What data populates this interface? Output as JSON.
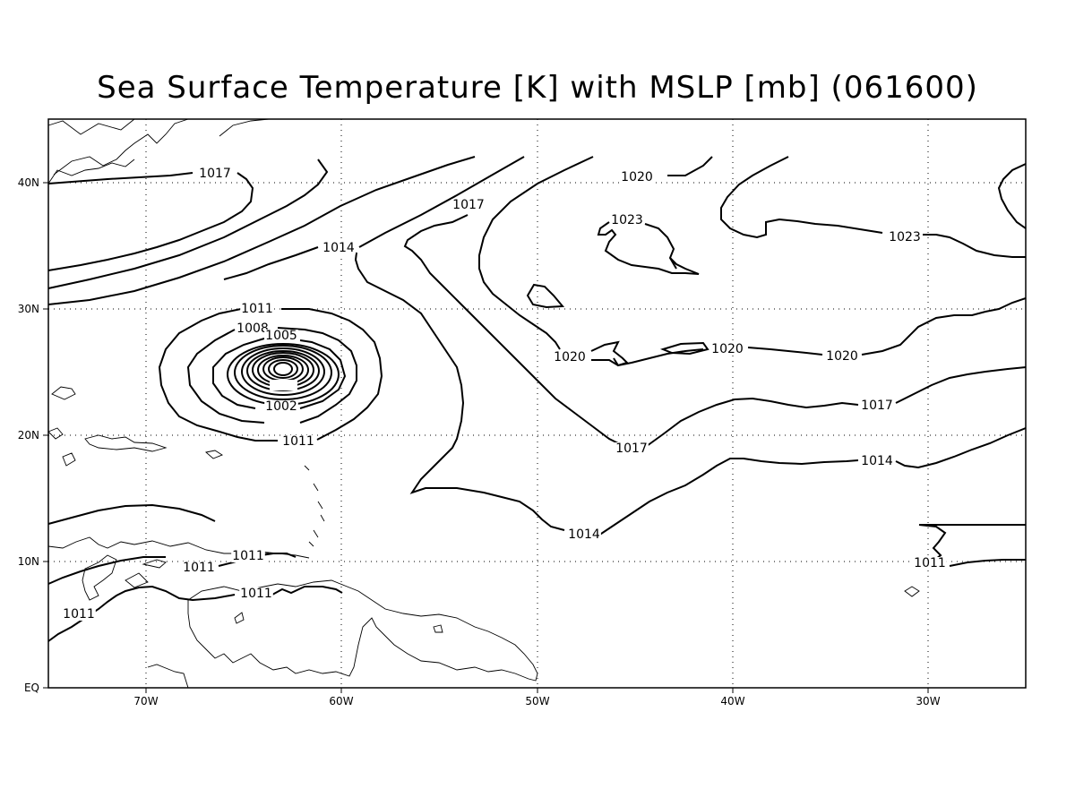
{
  "title": "Sea Surface Temperature [K] with MSLP [mb] (061600)",
  "map": {
    "projection": "lat-lon",
    "lon_range": [
      "75W",
      "25W"
    ],
    "lat_range": [
      "EQ",
      "45N"
    ],
    "grid": "dotted",
    "x_ticks": [
      "70W",
      "60W",
      "50W",
      "40W",
      "30W"
    ],
    "y_ticks": [
      "EQ",
      "10N",
      "20N",
      "30N",
      "40N"
    ]
  },
  "contour_labels": [
    {
      "id": "l1017a",
      "text": "1017"
    },
    {
      "id": "l1017b",
      "text": "1017"
    },
    {
      "id": "l1020a",
      "text": "1020"
    },
    {
      "id": "l1023a",
      "text": "1023"
    },
    {
      "id": "l1023b",
      "text": "1023"
    },
    {
      "id": "l1014a",
      "text": "1014"
    },
    {
      "id": "l1011a",
      "text": "1011"
    },
    {
      "id": "l1008",
      "text": "1008"
    },
    {
      "id": "l1005",
      "text": "1005"
    },
    {
      "id": "l1002",
      "text": "1002"
    },
    {
      "id": "l1011b",
      "text": "1011"
    },
    {
      "id": "l1020b",
      "text": "1020"
    },
    {
      "id": "l1020c",
      "text": "1020"
    },
    {
      "id": "l1020d",
      "text": "1020"
    },
    {
      "id": "l1017c",
      "text": "1017"
    },
    {
      "id": "l1017d",
      "text": "1017"
    },
    {
      "id": "l1014b",
      "text": "1014"
    },
    {
      "id": "l1014c",
      "text": "1014"
    },
    {
      "id": "l1011c",
      "text": "1011"
    },
    {
      "id": "l1011d",
      "text": "1011"
    },
    {
      "id": "l1011e",
      "text": "1011"
    },
    {
      "id": "l1011f",
      "text": "1011"
    },
    {
      "id": "l1011g",
      "text": "1011"
    }
  ]
}
